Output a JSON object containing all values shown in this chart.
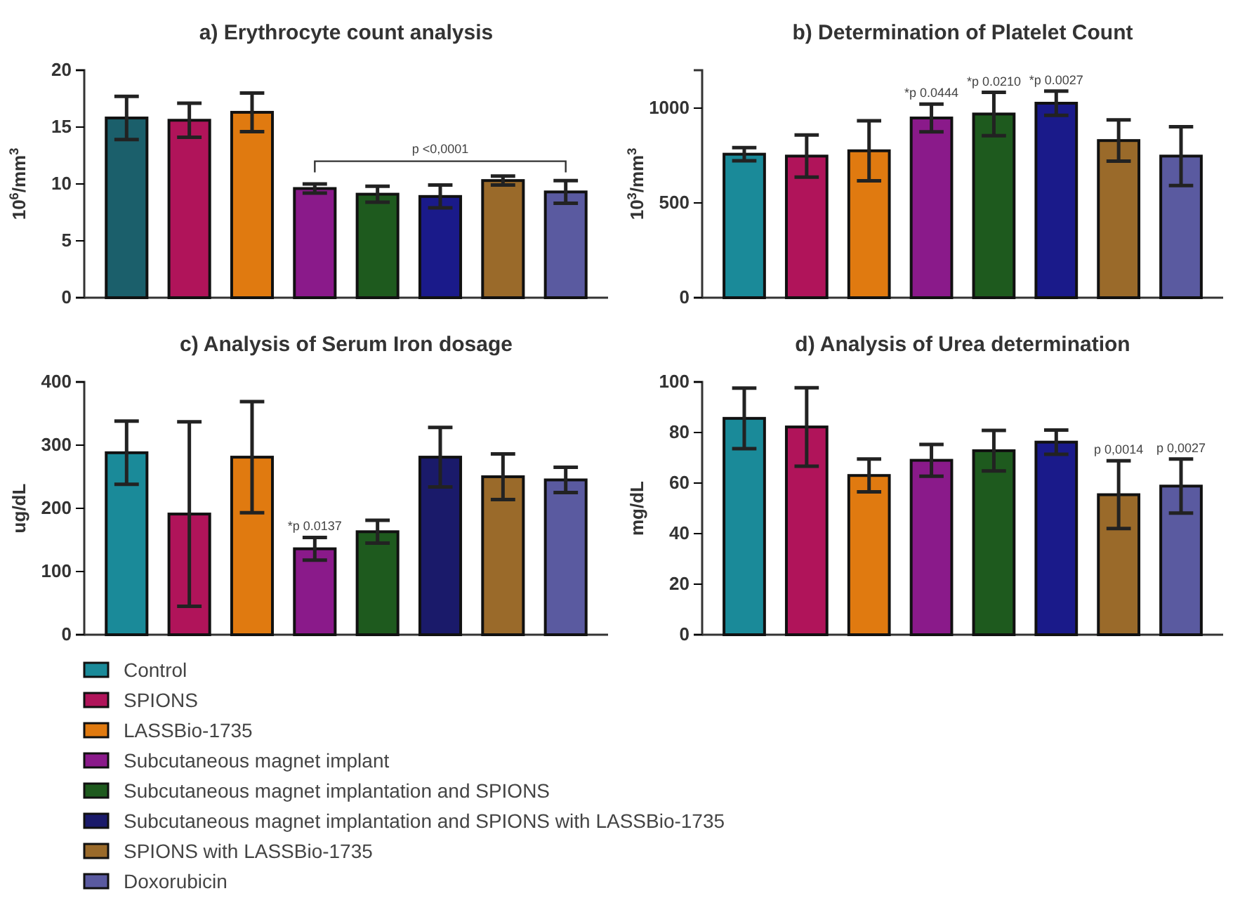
{
  "chart_data": [
    {
      "type": "bar",
      "title": "a) Erythrocyte count analysis",
      "ylabel": "10$^{6}$/mm$^{3}$",
      "categories": [
        null
      ],
      "ylim": [
        0,
        20
      ],
      "yticks": [
        0,
        5,
        10,
        15,
        20
      ],
      "grid": false,
      "legend": false,
      "annotations": [
        "p <0,0001"
      ],
      "series": [
        {
          "color": "#1b5f6b",
          "values": [
            15.8
          ],
          "errors": [
            1.9
          ]
        },
        {
          "color": "#b0145a",
          "values": [
            15.6
          ],
          "errors": [
            1.5
          ]
        },
        {
          "color": "#e07a10",
          "values": [
            16.3
          ],
          "errors": [
            1.7
          ]
        },
        {
          "color": "#8a1a8a",
          "values": [
            9.6
          ],
          "errors": [
            0.4
          ]
        },
        {
          "color": "#1e5a1e",
          "values": [
            9.1
          ],
          "errors": [
            0.7
          ]
        },
        {
          "color": "#1a1a8a",
          "values": [
            8.9
          ],
          "errors": [
            1.0
          ]
        },
        {
          "color": "#9a6a2a",
          "values": [
            10.3
          ],
          "errors": [
            0.4
          ]
        },
        {
          "color": "#5a5aa0",
          "values": [
            9.3
          ],
          "errors": [
            1.0
          ]
        }
      ]
    },
    {
      "type": "bar",
      "title": "b) Determination of Platelet Count",
      "ylabel": "10$^{3}$/mm$^{3}$",
      "categories": [
        null
      ],
      "ylim": [
        0,
        1200
      ],
      "yticks": [
        0,
        500,
        1000
      ],
      "grid": false,
      "legend": false,
      "series": [
        {
          "color": "#1a8a99",
          "values": [
            757
          ],
          "errors": [
            35
          ]
        },
        {
          "color": "#b0145a",
          "values": [
            747
          ],
          "errors": [
            111
          ]
        },
        {
          "color": "#e07a10",
          "values": [
            775
          ],
          "errors": [
            158
          ]
        },
        {
          "color": "#8a1a8a",
          "values": [
            948
          ],
          "errors": [
            73
          ],
          "value_labels": [
            "*p 0.0444"
          ]
        },
        {
          "color": "#1e5a1e",
          "values": [
            969
          ],
          "errors": [
            114
          ],
          "value_labels": [
            "*p 0.0210"
          ]
        },
        {
          "color": "#1a1a8a",
          "values": [
            1026
          ],
          "errors": [
            64
          ],
          "value_labels": [
            "*p 0.0027"
          ]
        },
        {
          "color": "#9a6a2a",
          "values": [
            829
          ],
          "errors": [
            109
          ]
        },
        {
          "color": "#5a5aa0",
          "values": [
            747
          ],
          "errors": [
            155
          ]
        }
      ]
    },
    {
      "type": "bar",
      "title": "c) Analysis of Serum Iron dosage",
      "ylabel": "ug/dL",
      "categories": [
        null
      ],
      "ylim": [
        0,
        400
      ],
      "yticks": [
        0,
        100,
        200,
        300,
        400
      ],
      "grid": false,
      "legend": "bottom",
      "series": [
        {
          "name": "Control",
          "color": "#1a8a99",
          "values": [
            288
          ],
          "errors": [
            50
          ]
        },
        {
          "name": "SPIONS",
          "color": "#b0145a",
          "values": [
            191
          ],
          "errors": [
            146
          ]
        },
        {
          "name": "LASSBio-1735",
          "color": "#e07a10",
          "values": [
            281
          ],
          "errors": [
            88
          ]
        },
        {
          "name": "Subcutaneous magnet implant",
          "color": "#8a1a8a",
          "values": [
            136
          ],
          "errors": [
            18
          ],
          "value_labels": [
            "*p 0.0137"
          ]
        },
        {
          "name": "Subcutaneous magnet implantation and SPIONS",
          "color": "#1e5a1e",
          "values": [
            163
          ],
          "errors": [
            18
          ]
        },
        {
          "name": "Subcutaneous magnet implantation and SPIONS with LASSBio-1735",
          "color": "#1a1a6a",
          "values": [
            281
          ],
          "errors": [
            47
          ]
        },
        {
          "name": "SPIONS with LASSBio-1735",
          "color": "#9a6a2a",
          "values": [
            250
          ],
          "errors": [
            36
          ]
        },
        {
          "name": "Doxorubicin",
          "color": "#5a5aa0",
          "values": [
            245
          ],
          "errors": [
            20
          ]
        }
      ]
    },
    {
      "type": "bar",
      "title": "d) Analysis of Urea determination",
      "ylabel": "mg/dL",
      "categories": [
        null
      ],
      "ylim": [
        0,
        100
      ],
      "yticks": [
        0,
        20,
        40,
        60,
        80,
        100
      ],
      "grid": false,
      "legend": false,
      "series": [
        {
          "color": "#1a8a99",
          "values": [
            85.6
          ],
          "errors": [
            12
          ]
        },
        {
          "color": "#b0145a",
          "values": [
            82.2
          ],
          "errors": [
            15.5
          ]
        },
        {
          "color": "#e07a10",
          "values": [
            63
          ],
          "errors": [
            6.5
          ]
        },
        {
          "color": "#8a1a8a",
          "values": [
            69
          ],
          "errors": [
            6.3
          ]
        },
        {
          "color": "#1e5a1e",
          "values": [
            72.8
          ],
          "errors": [
            8
          ]
        },
        {
          "color": "#1a1a8a",
          "values": [
            76.2
          ],
          "errors": [
            4.8
          ]
        },
        {
          "color": "#9a6a2a",
          "values": [
            55.4
          ],
          "errors": [
            13.4
          ],
          "value_labels": [
            "p 0,0014"
          ]
        },
        {
          "color": "#5a5aa0",
          "values": [
            58.8
          ],
          "errors": [
            10.7
          ],
          "value_labels": [
            "p 0,0027"
          ]
        }
      ]
    }
  ]
}
